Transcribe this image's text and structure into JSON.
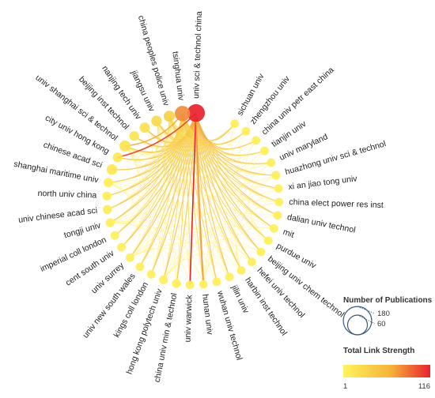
{
  "nodes": [
    {
      "label": "univ sci & technol china",
      "angle": 88,
      "pubs": 180,
      "strength": 116
    },
    {
      "label": "tsinghua univ",
      "angle": 97,
      "pubs": 120,
      "strength": 75
    },
    {
      "label": "china peoples police univ",
      "angle": 106,
      "pubs": 40,
      "strength": 40
    },
    {
      "label": "jiangsu univ",
      "angle": 115,
      "pubs": 35,
      "strength": 30
    },
    {
      "label": "nanjing tech univ",
      "angle": 124,
      "pubs": 30,
      "strength": 22
    },
    {
      "label": "beijing inst technol",
      "angle": 133,
      "pubs": 25,
      "strength": 18
    },
    {
      "label": "univ shanghai sci & technol",
      "angle": 142,
      "pubs": 40,
      "strength": 20
    },
    {
      "label": "city univ hong kong",
      "angle": 151,
      "pubs": 25,
      "strength": 14
    },
    {
      "label": "chinese acad sci",
      "angle": 160,
      "pubs": 35,
      "strength": 16
    },
    {
      "label": "shanghai maritime univ",
      "angle": 169,
      "pubs": 20,
      "strength": 8
    },
    {
      "label": "north univ china",
      "angle": 178,
      "pubs": 18,
      "strength": 8
    },
    {
      "label": "univ chinese acad sci",
      "angle": 187,
      "pubs": 18,
      "strength": 10
    },
    {
      "label": "tongji univ",
      "angle": 196,
      "pubs": 16,
      "strength": 7
    },
    {
      "label": "imperial coll london",
      "angle": 205,
      "pubs": 14,
      "strength": 6
    },
    {
      "label": "cent south univ",
      "angle": 214,
      "pubs": 14,
      "strength": 6
    },
    {
      "label": "univ surrey",
      "angle": 223,
      "pubs": 14,
      "strength": 6
    },
    {
      "label": "univ new south wales",
      "angle": 232,
      "pubs": 14,
      "strength": 6
    },
    {
      "label": "kings coll london",
      "angle": 241,
      "pubs": 14,
      "strength": 6
    },
    {
      "label": "hong kong polytech univ",
      "angle": 250,
      "pubs": 16,
      "strength": 7
    },
    {
      "label": "china univ min & technol",
      "angle": 259,
      "pubs": 16,
      "strength": 7
    },
    {
      "label": "univ warwick",
      "angle": 268,
      "pubs": 14,
      "strength": 6
    },
    {
      "label": "hunan univ",
      "angle": 277,
      "pubs": 14,
      "strength": 6
    },
    {
      "label": "wuhan univ technol",
      "angle": 286,
      "pubs": 14,
      "strength": 6
    },
    {
      "label": "jilin univ",
      "angle": 295,
      "pubs": 14,
      "strength": 6
    },
    {
      "label": "harbin inst technol",
      "angle": 304,
      "pubs": 14,
      "strength": 6
    },
    {
      "label": "hefei univ technol",
      "angle": 313,
      "pubs": 14,
      "strength": 6
    },
    {
      "label": "beijing univ chem technol",
      "angle": 322,
      "pubs": 14,
      "strength": 6
    },
    {
      "label": "purdue univ",
      "angle": 331,
      "pubs": 14,
      "strength": 5
    },
    {
      "label": "mit",
      "angle": 340,
      "pubs": 14,
      "strength": 5
    },
    {
      "label": "dalian univ technol",
      "angle": 349,
      "pubs": 14,
      "strength": 6
    },
    {
      "label": "china elect power res inst",
      "angle": 358,
      "pubs": 14,
      "strength": 6
    },
    {
      "label": "xi an jiao tong univ",
      "angle": 7,
      "pubs": 14,
      "strength": 6
    },
    {
      "label": "huazhong univ sci & technol",
      "angle": 16,
      "pubs": 16,
      "strength": 7
    },
    {
      "label": "univ maryland",
      "angle": 25,
      "pubs": 14,
      "strength": 6
    },
    {
      "label": "tianjin univ",
      "angle": 34,
      "pubs": 14,
      "strength": 6
    },
    {
      "label": "china univ petr east china",
      "angle": 43,
      "pubs": 14,
      "strength": 6
    },
    {
      "label": "zhengzhou univ",
      "angle": 52,
      "pubs": 14,
      "strength": 6
    },
    {
      "label": "sichuan univ",
      "angle": 61,
      "pubs": 14,
      "strength": 6
    }
  ],
  "strong_links": [
    {
      "from": "univ sci & technol china",
      "to": "univ warwick",
      "strength": 116
    },
    {
      "from": "univ sci & technol china",
      "to": "city univ hong kong",
      "strength": 100
    },
    {
      "from": "univ sci & technol china",
      "to": "hunan univ",
      "strength": 70
    },
    {
      "from": "tsinghua univ",
      "to": "univ shanghai sci & technol",
      "strength": 60
    }
  ],
  "legend": {
    "size_title": "Number of Publications",
    "size_values": [
      "180",
      "60"
    ],
    "size_ref_pubs": [
      180,
      60
    ],
    "color_title": "Total Link Strength",
    "color_min": "1",
    "color_max": "116"
  },
  "colors": {
    "low": "#fff45c",
    "mid": "#f5c542",
    "high": "#e8222e"
  }
}
